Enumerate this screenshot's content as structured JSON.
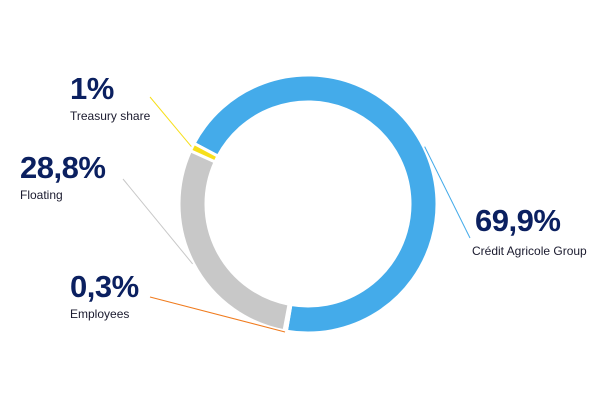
{
  "chart_data": {
    "type": "pie",
    "style": "donut",
    "categories": [
      "Crédit Agricole Group",
      "Employees",
      "Floating",
      "Treasury share"
    ],
    "values": [
      69.9,
      0.3,
      28.8,
      1
    ],
    "value_labels": [
      "69,9%",
      "0,3%",
      "28,8%",
      "1%"
    ],
    "colors": [
      "#44abea",
      "#f07b1e",
      "#c8c8c8",
      "#f7df1a"
    ],
    "legend": "none"
  }
}
